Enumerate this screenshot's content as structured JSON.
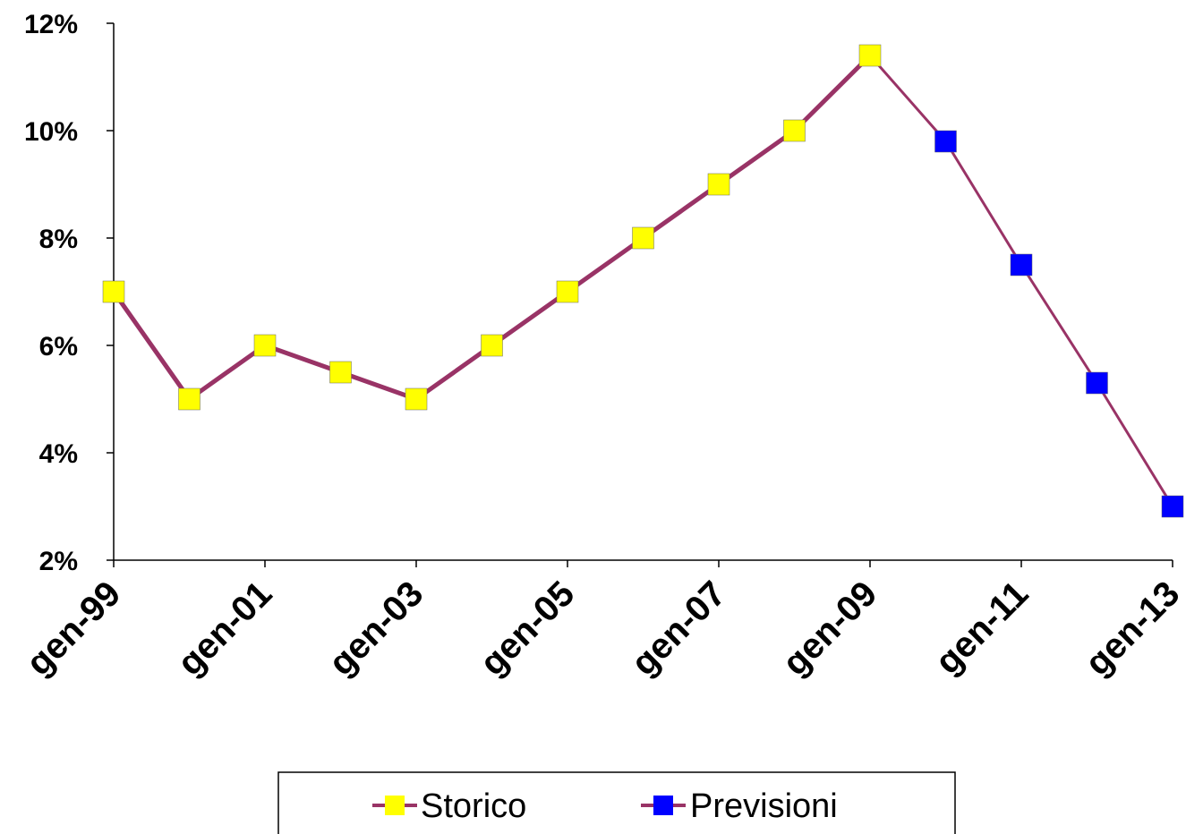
{
  "chart_data": {
    "type": "line",
    "title": "",
    "xlabel": "",
    "ylabel": "",
    "y_tick_labels": [
      "2%",
      "4%",
      "6%",
      "8%",
      "10%",
      "12%"
    ],
    "y_ticks": [
      2,
      4,
      6,
      8,
      10,
      12
    ],
    "ylim": [
      2,
      12
    ],
    "x_tick_labels": [
      "gen-99",
      "gen-01",
      "gen-03",
      "gen-05",
      "gen-07",
      "gen-09",
      "gen-11",
      "gen-13"
    ],
    "xlim": [
      0,
      14
    ],
    "line_color": "#993366",
    "grid": false,
    "legend_position": "bottom",
    "series": [
      {
        "name": "Storico",
        "marker_color": "#ffff00",
        "points": [
          {
            "x": 0,
            "y": 7.0
          },
          {
            "x": 1,
            "y": 5.0
          },
          {
            "x": 2,
            "y": 6.0
          },
          {
            "x": 3,
            "y": 5.5
          },
          {
            "x": 4,
            "y": 5.0
          },
          {
            "x": 5,
            "y": 6.0
          },
          {
            "x": 6,
            "y": 7.0
          },
          {
            "x": 7,
            "y": 8.0
          },
          {
            "x": 8,
            "y": 9.0
          },
          {
            "x": 9,
            "y": 10.0
          },
          {
            "x": 10,
            "y": 11.4
          }
        ]
      },
      {
        "name": "Previsioni",
        "marker_color": "#0000ff",
        "points": [
          {
            "x": 11,
            "y": 9.8
          },
          {
            "x": 12,
            "y": 7.5
          },
          {
            "x": 13,
            "y": 5.3
          },
          {
            "x": 14,
            "y": 3.0
          }
        ]
      }
    ]
  }
}
